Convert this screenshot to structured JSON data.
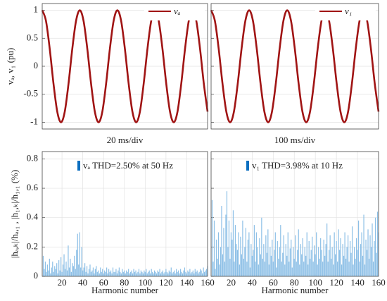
{
  "chart_data": [
    {
      "type": "line",
      "ylabel": "vₐ, v₁ (pu)",
      "xlabel": "20 ms/div",
      "grid": true,
      "xlim": [
        0,
        44
      ],
      "ylim": [
        -1.12,
        1.12
      ],
      "yticks": [
        -1,
        -0.5,
        0,
        0.5,
        1
      ],
      "x": [
        0,
        1,
        2,
        3,
        4,
        5,
        6,
        7,
        8,
        9,
        10,
        11,
        12,
        13,
        14,
        15,
        16,
        17,
        18,
        19,
        20,
        21,
        22,
        23,
        24,
        25,
        26,
        27,
        28,
        29,
        30,
        31,
        32,
        33,
        34,
        35,
        36,
        37,
        38,
        39,
        40,
        41,
        42,
        43,
        44
      ],
      "series": [
        {
          "name": "vₐ",
          "color": "#a01414",
          "values": [
            1,
            0.81,
            0.31,
            -0.31,
            -0.81,
            -1,
            -0.81,
            -0.31,
            0.31,
            0.81,
            1,
            0.81,
            0.31,
            -0.31,
            -0.81,
            -1,
            -0.81,
            -0.31,
            0.31,
            0.81,
            1,
            0.81,
            0.31,
            -0.31,
            -0.81,
            -1,
            -0.81,
            -0.31,
            0.31,
            0.81,
            1,
            0.81,
            0.31,
            -0.31,
            -0.81,
            -1,
            -0.81,
            -0.31,
            0.31,
            0.81,
            1,
            0.81,
            0.31,
            -0.31,
            -0.81
          ]
        }
      ]
    },
    {
      "type": "line",
      "xlabel": "100 ms/div",
      "grid": true,
      "xlim": [
        0,
        44
      ],
      "ylim": [
        -1.12,
        1.12
      ],
      "yticks": [
        -1,
        -0.5,
        0,
        0.5,
        1
      ],
      "x": [
        0,
        1,
        2,
        3,
        4,
        5,
        6,
        7,
        8,
        9,
        10,
        11,
        12,
        13,
        14,
        15,
        16,
        17,
        18,
        19,
        20,
        21,
        22,
        23,
        24,
        25,
        26,
        27,
        28,
        29,
        30,
        31,
        32,
        33,
        34,
        35,
        36,
        37,
        38,
        39,
        40,
        41,
        42,
        43,
        44
      ],
      "series": [
        {
          "name": "v₁",
          "color": "#a01414",
          "values": [
            1,
            0.81,
            0.31,
            -0.31,
            -0.81,
            -1,
            -0.81,
            -0.31,
            0.31,
            0.81,
            1,
            0.81,
            0.31,
            -0.31,
            -0.81,
            -1,
            -0.81,
            -0.31,
            0.31,
            0.81,
            1,
            0.81,
            0.31,
            -0.31,
            -0.81,
            -1,
            -0.81,
            -0.31,
            0.31,
            0.81,
            1,
            0.81,
            0.31,
            -0.31,
            -0.81,
            -1,
            -0.81,
            -0.31,
            0.31,
            0.81,
            1,
            0.81,
            0.31,
            -0.31,
            -0.81
          ]
        }
      ]
    },
    {
      "type": "bar",
      "ylabel": "|hₐ,ₖ|/hₐ,₁ , |h₁,ₖ|/h₁,₁ (%)",
      "xlabel": "Harmonic number",
      "grid": true,
      "xlim": [
        1,
        160
      ],
      "ylim": [
        0,
        0.85
      ],
      "yticks": [
        0,
        0.2,
        0.4,
        0.6,
        0.8
      ],
      "xticks": [
        20,
        40,
        60,
        80,
        100,
        120,
        140,
        160
      ],
      "x": [
        2,
        3,
        4,
        5,
        6,
        7,
        8,
        9,
        10,
        11,
        12,
        13,
        14,
        15,
        16,
        17,
        18,
        19,
        20,
        21,
        22,
        23,
        24,
        25,
        26,
        27,
        28,
        29,
        30,
        31,
        32,
        33,
        34,
        35,
        36,
        37,
        38,
        39,
        40,
        41,
        42,
        43,
        44,
        45,
        46,
        47,
        48,
        49,
        50,
        51,
        52,
        53,
        54,
        55,
        56,
        57,
        58,
        59,
        60,
        61,
        62,
        63,
        64,
        65,
        66,
        67,
        68,
        69,
        70,
        71,
        72,
        73,
        74,
        75,
        76,
        77,
        78,
        79,
        80,
        81,
        82,
        83,
        84,
        85,
        86,
        87,
        88,
        89,
        90,
        91,
        92,
        93,
        94,
        95,
        96,
        97,
        98,
        99,
        100,
        101,
        102,
        103,
        104,
        105,
        106,
        107,
        108,
        109,
        110,
        111,
        112,
        113,
        114,
        115,
        116,
        117,
        118,
        119,
        120,
        121,
        122,
        123,
        124,
        125,
        126,
        127,
        128,
        129,
        130,
        131,
        132,
        133,
        134,
        135,
        136,
        137,
        138,
        139,
        140,
        141,
        142,
        143,
        144,
        145,
        146,
        147,
        148,
        149,
        150,
        151,
        152,
        153,
        154,
        155,
        156,
        157,
        158,
        159,
        160
      ],
      "series": [
        {
          "name": "vₐ THD=2.50% at 50 Hz",
          "color": "#0b6fc0",
          "bar_color": "#8cbfe6",
          "values": [
            0.14,
            0.05,
            0.1,
            0.03,
            0.08,
            0.04,
            0.12,
            0.02,
            0.06,
            0.1,
            0.03,
            0.07,
            0.05,
            0.09,
            0.02,
            0.11,
            0.04,
            0.13,
            0.03,
            0.08,
            0.15,
            0.05,
            0.1,
            0.04,
            0.21,
            0.06,
            0.12,
            0.03,
            0.09,
            0.07,
            0.14,
            0.05,
            0.18,
            0.29,
            0.08,
            0.3,
            0.06,
            0.2,
            0.04,
            0.06,
            0.09,
            0.03,
            0.07,
            0.02,
            0.05,
            0.08,
            0.03,
            0.04,
            0.06,
            0.02,
            0.05,
            0.07,
            0.03,
            0.04,
            0.02,
            0.06,
            0.03,
            0.05,
            0.02,
            0.04,
            0.03,
            0.06,
            0.02,
            0.05,
            0.03,
            0.04,
            0.02,
            0.06,
            0.03,
            0.03,
            0.05,
            0.02,
            0.04,
            0.06,
            0.03,
            0.02,
            0.05,
            0.03,
            0.04,
            0.02,
            0.04,
            0.03,
            0.05,
            0.02,
            0.03,
            0.04,
            0.02,
            0.05,
            0.03,
            0.04,
            0.02,
            0.03,
            0.05,
            0.02,
            0.04,
            0.03,
            0.02,
            0.04,
            0.03,
            0.05,
            0.02,
            0.03,
            0.04,
            0.02,
            0.05,
            0.03,
            0.02,
            0.04,
            0.03,
            0.02,
            0.04,
            0.03,
            0.05,
            0.02,
            0.03,
            0.04,
            0.02,
            0.03,
            0.05,
            0.03,
            0.02,
            0.04,
            0.03,
            0.06,
            0.02,
            0.03,
            0.04,
            0.02,
            0.05,
            0.03,
            0.04,
            0.02,
            0.05,
            0.03,
            0.02,
            0.04,
            0.06,
            0.03,
            0.02,
            0.04,
            0.03,
            0.05,
            0.02,
            0.03,
            0.04,
            0.02,
            0.05,
            0.03,
            0.04,
            0.02,
            0.03,
            0.05,
            0.04,
            0.02,
            0.06,
            0.03,
            0.04,
            0.05,
            0.07
          ]
        }
      ]
    },
    {
      "type": "bar",
      "xlabel": "Harmonic number",
      "grid": true,
      "xlim": [
        1,
        160
      ],
      "ylim": [
        0,
        0.85
      ],
      "yticks": [
        0,
        0.2,
        0.4,
        0.6,
        0.8
      ],
      "xticks": [
        20,
        40,
        60,
        80,
        100,
        120,
        140,
        160
      ],
      "x": [
        2,
        3,
        4,
        5,
        6,
        7,
        8,
        9,
        10,
        11,
        12,
        13,
        14,
        15,
        16,
        17,
        18,
        19,
        20,
        21,
        22,
        23,
        24,
        25,
        26,
        27,
        28,
        29,
        30,
        31,
        32,
        33,
        34,
        35,
        36,
        37,
        38,
        39,
        40,
        41,
        42,
        43,
        44,
        45,
        46,
        47,
        48,
        49,
        50,
        51,
        52,
        53,
        54,
        55,
        56,
        57,
        58,
        59,
        60,
        61,
        62,
        63,
        64,
        65,
        66,
        67,
        68,
        69,
        70,
        71,
        72,
        73,
        74,
        75,
        76,
        77,
        78,
        79,
        80,
        81,
        82,
        83,
        84,
        85,
        86,
        87,
        88,
        89,
        90,
        91,
        92,
        93,
        94,
        95,
        96,
        97,
        98,
        99,
        100,
        101,
        102,
        103,
        104,
        105,
        106,
        107,
        108,
        109,
        110,
        111,
        112,
        113,
        114,
        115,
        116,
        117,
        118,
        119,
        120,
        121,
        122,
        123,
        124,
        125,
        126,
        127,
        128,
        129,
        130,
        131,
        132,
        133,
        134,
        135,
        136,
        137,
        138,
        139,
        140,
        141,
        142,
        143,
        144,
        145,
        146,
        147,
        148,
        149,
        150,
        151,
        152,
        153,
        154,
        155,
        156,
        157,
        158,
        159,
        160
      ],
      "series": [
        {
          "name": "v₁ THD=3.98% at 10 Hz",
          "color": "#0b6fc0",
          "bar_color": "#8cbfe6",
          "values": [
            0.52,
            0.1,
            0.38,
            0.05,
            0.25,
            0.12,
            0.3,
            0.08,
            0.2,
            0.48,
            0.15,
            0.33,
            0.1,
            0.42,
            0.58,
            0.2,
            0.38,
            0.12,
            0.3,
            0.25,
            0.45,
            0.1,
            0.35,
            0.22,
            0.18,
            0.3,
            0.08,
            0.27,
            0.15,
            0.38,
            0.12,
            0.2,
            0.33,
            0.1,
            0.25,
            0.3,
            0.06,
            0.22,
            0.14,
            0.18,
            0.35,
            0.1,
            0.3,
            0.2,
            0.08,
            0.26,
            0.15,
            0.4,
            0.12,
            0.22,
            0.1,
            0.28,
            0.16,
            0.32,
            0.08,
            0.2,
            0.14,
            0.25,
            0.1,
            0.18,
            0.3,
            0.06,
            0.24,
            0.12,
            0.2,
            0.35,
            0.1,
            0.16,
            0.28,
            0.08,
            0.22,
            0.14,
            0.3,
            0.1,
            0.19,
            0.25,
            0.06,
            0.2,
            0.12,
            0.28,
            0.1,
            0.18,
            0.32,
            0.08,
            0.22,
            0.15,
            0.26,
            0.1,
            0.2,
            0.14,
            0.3,
            0.08,
            0.24,
            0.12,
            0.18,
            0.27,
            0.1,
            0.21,
            0.15,
            0.3,
            0.08,
            0.2,
            0.12,
            0.26,
            0.18,
            0.1,
            0.25,
            0.14,
            0.22,
            0.36,
            0.1,
            0.18,
            0.28,
            0.12,
            0.2,
            0.08,
            0.3,
            0.15,
            0.24,
            0.1,
            0.32,
            0.18,
            0.26,
            0.08,
            0.22,
            0.14,
            0.3,
            0.12,
            0.2,
            0.28,
            0.1,
            0.24,
            0.16,
            0.34,
            0.08,
            0.2,
            0.12,
            0.26,
            0.18,
            0.38,
            0.1,
            0.22,
            0.3,
            0.14,
            0.42,
            0.08,
            0.25,
            0.18,
            0.32,
            0.12,
            0.28,
            0.2,
            0.36,
            0.1,
            0.24,
            0.4,
            0.16,
            0.44,
            0.3
          ]
        }
      ]
    }
  ]
}
